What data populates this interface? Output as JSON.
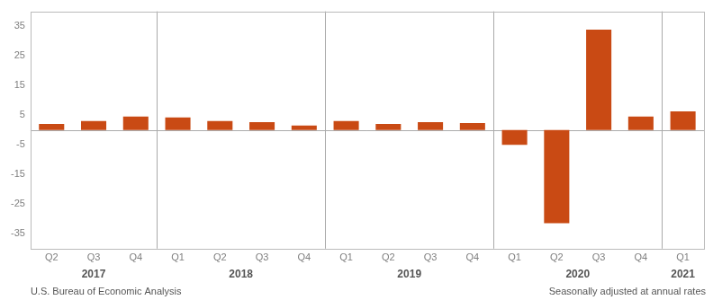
{
  "chart_data": {
    "type": "bar",
    "categories": [
      "Q2",
      "Q3",
      "Q4",
      "Q1",
      "Q2",
      "Q3",
      "Q4",
      "Q1",
      "Q2",
      "Q3",
      "Q4",
      "Q1",
      "Q2",
      "Q3",
      "Q4",
      "Q1"
    ],
    "years": [
      2017,
      2017,
      2017,
      2018,
      2018,
      2018,
      2018,
      2019,
      2019,
      2019,
      2019,
      2020,
      2020,
      2020,
      2020,
      2021
    ],
    "values": [
      2.0,
      3.0,
      4.5,
      4.2,
      3.0,
      2.6,
      1.5,
      3.0,
      2.0,
      2.6,
      2.3,
      -5.0,
      -31.4,
      33.8,
      4.5,
      6.3
    ],
    "color": "#C94A14",
    "ylim": [
      -40,
      40
    ],
    "yticks": [
      -35,
      -25,
      -15,
      -5,
      5,
      15,
      25,
      35
    ],
    "grid": false,
    "annotations": [
      "U.S. Bureau of Economic Analysis",
      "Seasonally adjusted at annual rates"
    ]
  }
}
